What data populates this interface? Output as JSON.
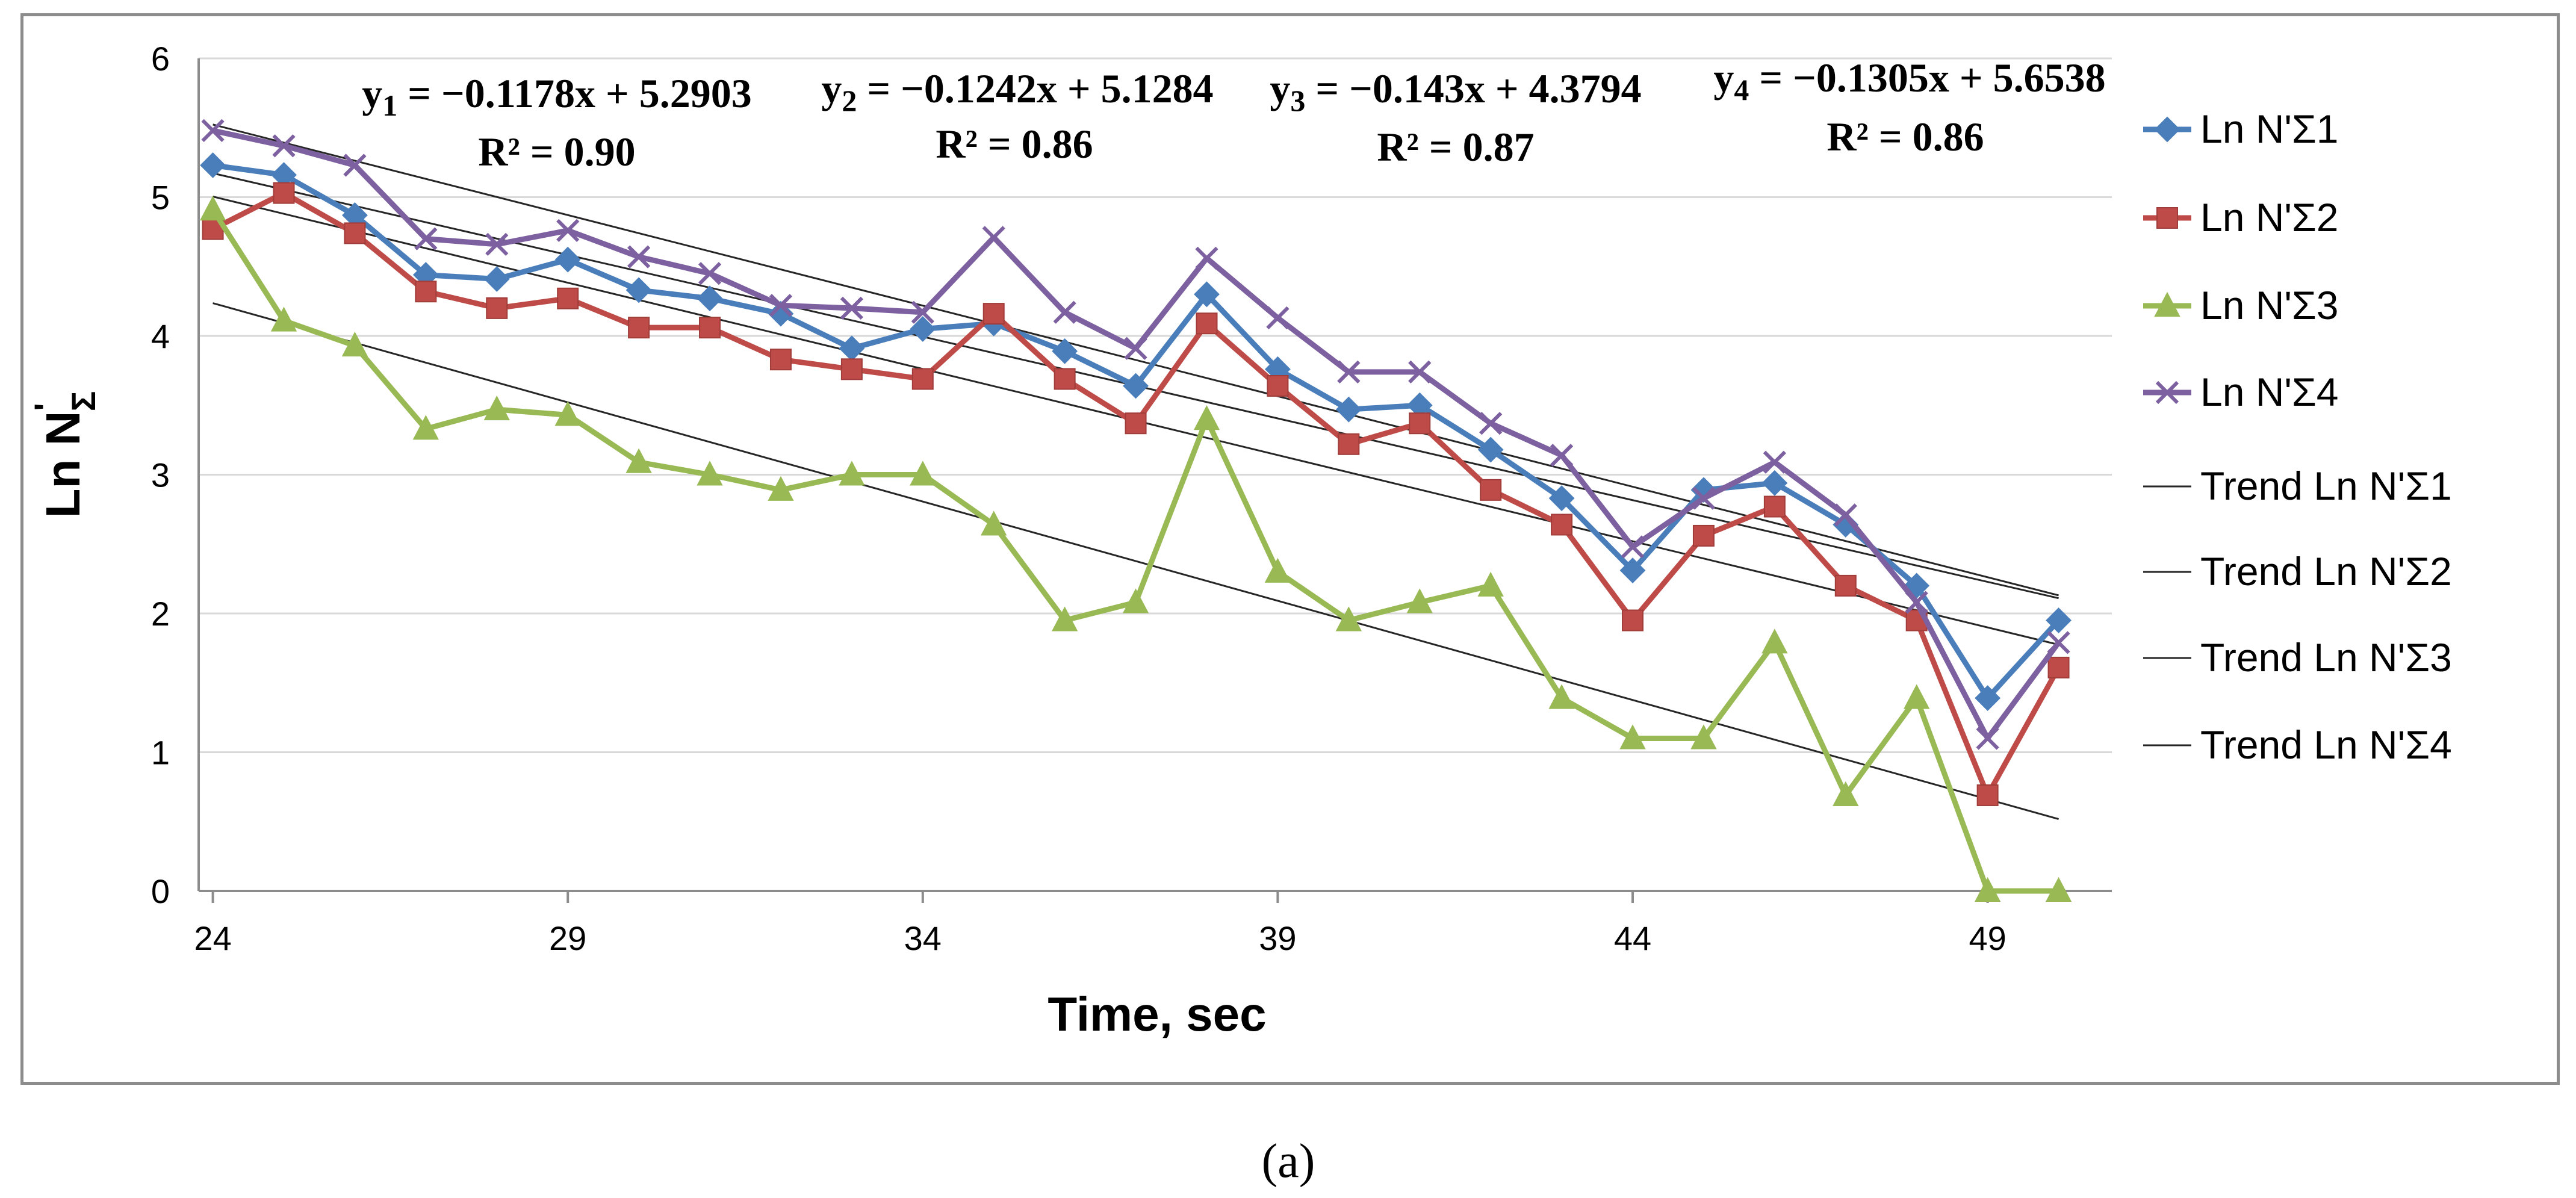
{
  "chart_data": {
    "type": "line",
    "title": "",
    "xlabel": "Time, sec",
    "ylabel": "Ln N'Σ",
    "ylabel_main": "Ln N",
    "ylabel_prime": "'",
    "ylabel_sub": "Σ",
    "xlim": [
      23.8,
      50.75
    ],
    "ylim": [
      0,
      6
    ],
    "x_ticks": [
      24,
      29,
      34,
      39,
      44,
      49
    ],
    "y_ticks": [
      0,
      1,
      2,
      3,
      4,
      5,
      6
    ],
    "grid": "horizontal",
    "legend_position": "right",
    "x": [
      24,
      25,
      26,
      27,
      28,
      29,
      30,
      31,
      32,
      33,
      34,
      35,
      36,
      37,
      38,
      39,
      40,
      41,
      42,
      43,
      44,
      45,
      46,
      47,
      48,
      49,
      50
    ],
    "series": [
      {
        "name": "Ln N'Σ1",
        "color": "#4a7ebb",
        "marker": "diamond",
        "values": [
          5.23,
          5.16,
          4.87,
          4.44,
          4.41,
          4.55,
          4.33,
          4.27,
          4.16,
          3.91,
          4.05,
          4.09,
          3.89,
          3.64,
          4.3,
          3.76,
          3.47,
          3.5,
          3.18,
          2.83,
          2.31,
          2.89,
          2.94,
          2.64,
          2.2,
          1.39,
          1.95
        ]
      },
      {
        "name": "Ln N'Σ2",
        "color": "#be4b48",
        "marker": "square",
        "values": [
          4.77,
          5.03,
          4.74,
          4.32,
          4.2,
          4.27,
          4.06,
          4.06,
          3.83,
          3.76,
          3.69,
          4.16,
          3.69,
          3.37,
          4.09,
          3.64,
          3.22,
          3.37,
          2.89,
          2.64,
          1.95,
          2.56,
          2.77,
          2.2,
          1.95,
          0.69,
          1.61
        ]
      },
      {
        "name": "Ln N'Σ3",
        "color": "#98b954",
        "marker": "triangle",
        "values": [
          4.91,
          4.11,
          3.93,
          3.33,
          3.47,
          3.43,
          3.09,
          3.0,
          2.89,
          3.0,
          3.0,
          2.64,
          1.95,
          2.08,
          3.4,
          2.3,
          1.95,
          2.08,
          2.2,
          1.39,
          1.1,
          1.1,
          1.79,
          0.69,
          1.39,
          0.0,
          0.0
        ]
      },
      {
        "name": "Ln N'Σ4",
        "color": "#7d60a0",
        "marker": "x",
        "values": [
          5.48,
          5.37,
          5.23,
          4.7,
          4.66,
          4.76,
          4.57,
          4.45,
          4.22,
          4.2,
          4.17,
          4.71,
          4.17,
          3.91,
          4.56,
          4.13,
          3.74,
          3.74,
          3.37,
          3.14,
          2.48,
          2.83,
          3.09,
          2.71,
          2.08,
          1.1,
          1.79
        ]
      }
    ],
    "trendlines": [
      {
        "name": "Trend Ln N'Σ1",
        "slope": -0.1178,
        "intercept": 5.2903,
        "r2": "R² = 0.90",
        "equation": "y1 = −0.1178x + 5.2903"
      },
      {
        "name": "Trend Ln N'Σ2",
        "slope": -0.1242,
        "intercept": 5.1284,
        "r2": "R² = 0.86",
        "equation": "y2 = −0.1242x + 5.1284"
      },
      {
        "name": "Trend Ln N'Σ3",
        "slope": -0.143,
        "intercept": 4.3794,
        "r2": "R² = 0.87",
        "equation": "y3 = −0.143x + 4.3794"
      },
      {
        "name": "Trend Ln N'Σ4",
        "slope": -0.1305,
        "intercept": 5.6538,
        "r2": "R² = 0.86",
        "equation": "y4 = −0.1305x + 5.6538"
      }
    ],
    "equations": [
      {
        "prefix": "y",
        "sub": "1",
        "rest": " = −0.1178x + 5.2903",
        "r2": "R² = 0.90"
      },
      {
        "prefix": "y",
        "sub": "2",
        "rest": " = −0.1242x + 5.1284",
        "r2": "R² = 0.86"
      },
      {
        "prefix": "y",
        "sub": "3",
        "rest": " = −0.143x + 4.3794",
        "r2": "R² = 0.87"
      },
      {
        "prefix": "y",
        "sub": "4",
        "rest": " = −0.1305x + 5.6538",
        "r2": "R² = 0.86"
      }
    ]
  },
  "caption": "(a)"
}
